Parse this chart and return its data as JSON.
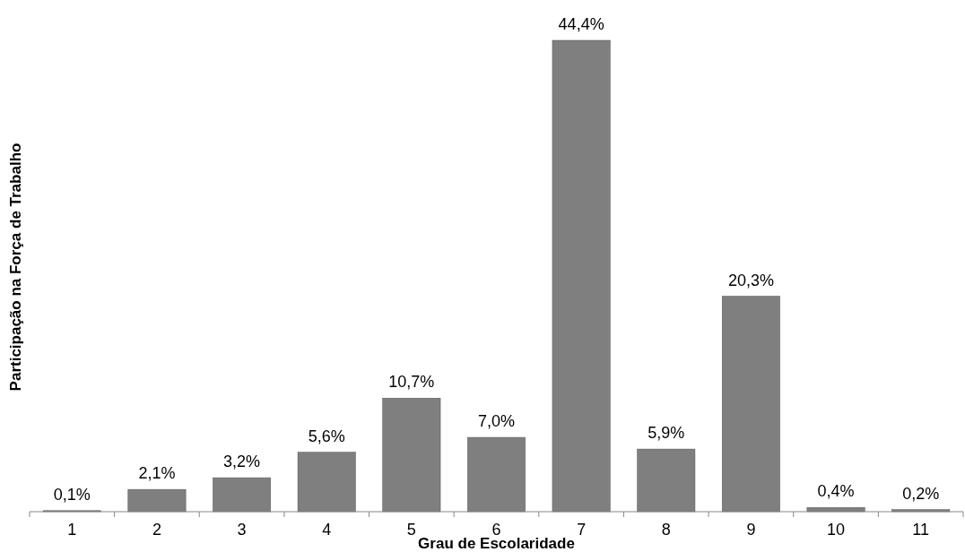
{
  "chart_data": {
    "type": "bar",
    "xlabel": "Grau de Escolaridade",
    "ylabel": "Participação na Força de Trabalho",
    "categories": [
      "1",
      "2",
      "3",
      "4",
      "5",
      "6",
      "7",
      "8",
      "9",
      "10",
      "11"
    ],
    "values": [
      0.1,
      2.1,
      3.2,
      5.6,
      10.7,
      7.0,
      44.4,
      5.9,
      20.3,
      0.4,
      0.2
    ],
    "value_labels": [
      "0,1%",
      "2,1%",
      "3,2%",
      "5,6%",
      "10,7%",
      "7,0%",
      "44,4%",
      "5,9%",
      "20,3%",
      "0,4%",
      "0,2%"
    ],
    "color": "#7f7f7f"
  }
}
